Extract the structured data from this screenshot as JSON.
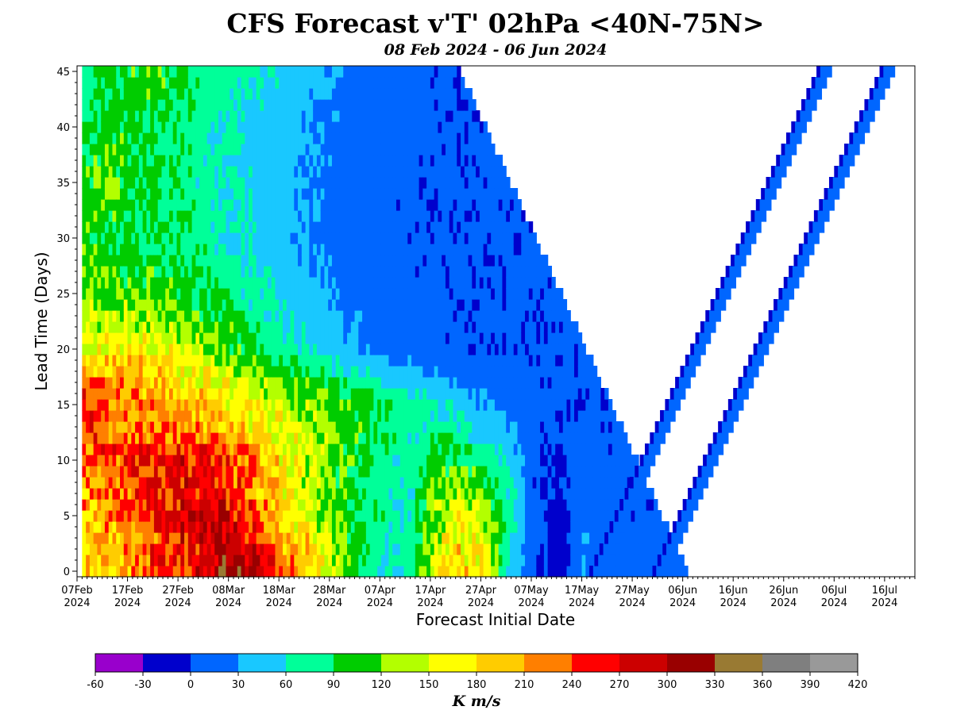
{
  "chart_data": {
    "type": "heatmap",
    "title": "CFS Forecast v'T' 02hPa <40N-75N>",
    "subtitle": "08 Feb 2024 - 06 Jun 2024",
    "xlabel": "Forecast Initial Date",
    "ylabel": "Lead Time (Days)",
    "x_tick_labels": [
      [
        "07Feb",
        "2024"
      ],
      [
        "17Feb",
        "2024"
      ],
      [
        "27Feb",
        "2024"
      ],
      [
        "08Mar",
        "2024"
      ],
      [
        "18Mar",
        "2024"
      ],
      [
        "28Mar",
        "2024"
      ],
      [
        "07Apr",
        "2024"
      ],
      [
        "17Apr",
        "2024"
      ],
      [
        "27Apr",
        "2024"
      ],
      [
        "07May",
        "2024"
      ],
      [
        "17May",
        "2024"
      ],
      [
        "27May",
        "2024"
      ],
      [
        "06Jun",
        "2024"
      ],
      [
        "16Jun",
        "2024"
      ],
      [
        "26Jun",
        "2024"
      ],
      [
        "06Jul",
        "2024"
      ],
      [
        "16Jul",
        "2024"
      ]
    ],
    "x_range": [
      "2024-02-07",
      "2024-07-22"
    ],
    "forecast_initial_range": [
      "2024-02-08",
      "2024-06-06"
    ],
    "y_ticks": [
      0,
      5,
      10,
      15,
      20,
      25,
      30,
      35,
      40,
      45
    ],
    "ylim": [
      -0.5,
      45.5
    ],
    "lead_days": [
      0,
      45
    ],
    "sample_rows": [
      {
        "lead": 0,
        "values": [
          195,
          185,
          205,
          240,
          255,
          290,
          310,
          300,
          230,
          200,
          150,
          100,
          60,
          70,
          155,
          195,
          170,
          55,
          0,
          -15,
          30,
          15,
          5,
          10,
          5
        ]
      },
      {
        "lead": 5,
        "values": [
          200,
          215,
          230,
          255,
          270,
          285,
          270,
          220,
          180,
          150,
          110,
          90,
          75,
          60,
          130,
          165,
          140,
          80,
          10,
          -10,
          25,
          10,
          5,
          8,
          6
        ]
      },
      {
        "lead": 10,
        "values": [
          215,
          240,
          250,
          260,
          265,
          250,
          230,
          200,
          170,
          140,
          115,
          95,
          80,
          65,
          100,
          110,
          75,
          50,
          5,
          -5,
          15,
          8,
          5,
          5,
          4
        ]
      },
      {
        "lead": 15,
        "values": [
          250,
          240,
          220,
          210,
          200,
          190,
          180,
          165,
          150,
          135,
          120,
          105,
          90,
          75,
          60,
          45,
          30,
          20,
          10,
          5,
          5,
          5,
          5,
          5,
          5
        ]
      },
      {
        "lead": 20,
        "values": [
          160,
          170,
          175,
          160,
          145,
          130,
          110,
          90,
          70,
          55,
          40,
          30,
          20,
          15,
          10,
          5,
          5,
          5,
          5,
          5,
          5,
          5,
          5,
          5,
          5
        ]
      },
      {
        "lead": 25,
        "values": [
          120,
          125,
          115,
          110,
          100,
          90,
          80,
          65,
          50,
          40,
          30,
          20,
          15,
          10,
          5,
          5,
          5,
          5,
          5,
          5,
          5,
          5,
          5,
          5,
          5
        ]
      },
      {
        "lead": 30,
        "values": [
          100,
          95,
          90,
          85,
          80,
          70,
          60,
          50,
          40,
          30,
          20,
          15,
          10,
          5,
          5,
          5,
          5,
          5,
          5,
          5,
          5,
          5,
          5,
          5,
          5
        ]
      },
      {
        "lead": 35,
        "values": [
          110,
          120,
          100,
          90,
          80,
          70,
          60,
          50,
          40,
          30,
          20,
          15,
          10,
          5,
          5,
          5,
          5,
          5,
          5,
          5,
          5,
          5,
          5,
          5,
          5
        ]
      },
      {
        "lead": 40,
        "values": [
          90,
          100,
          95,
          85,
          80,
          70,
          60,
          50,
          40,
          30,
          25,
          20,
          15,
          10,
          5,
          5,
          5,
          5,
          5,
          5,
          5,
          5,
          5,
          5,
          5
        ]
      },
      {
        "lead": 45,
        "values": [
          80,
          95,
          100,
          110,
          95,
          80,
          70,
          60,
          50,
          40,
          30,
          20,
          15,
          10,
          5,
          5,
          5,
          5,
          5,
          5,
          5,
          5,
          5,
          5,
          5
        ]
      }
    ],
    "sample_columns_note_dates": [
      "2024-02-08",
      "2024-02-12",
      "2024-02-17",
      "2024-02-22",
      "2024-02-27",
      "2024-03-03",
      "2024-03-08",
      "2024-03-13",
      "2024-03-18",
      "2024-03-23",
      "2024-03-28",
      "2024-04-02",
      "2024-04-07",
      "2024-04-12",
      "2024-04-17",
      "2024-04-22",
      "2024-04-27",
      "2024-05-02",
      "2024-05-07",
      "2024-05-12",
      "2024-05-17",
      "2024-05-22",
      "2024-05-27",
      "2024-06-01",
      "2024-06-06"
    ],
    "colorbar": {
      "label": "K m/s",
      "ticks": [
        "-60",
        "-30",
        "0",
        "30",
        "60",
        "90",
        "120",
        "150",
        "180",
        "210",
        "240",
        "270",
        "300",
        "330",
        "360",
        "390",
        "420"
      ],
      "colors": [
        "#9900cc",
        "#0000cc",
        "#0066ff",
        "#19c8ff",
        "#00ff99",
        "#00cc00",
        "#b3ff00",
        "#ffff00",
        "#ffcc00",
        "#ff7f00",
        "#ff0000",
        "#cc0000",
        "#990000",
        "#997a33",
        "#7f7f7f",
        "#999999"
      ]
    }
  }
}
